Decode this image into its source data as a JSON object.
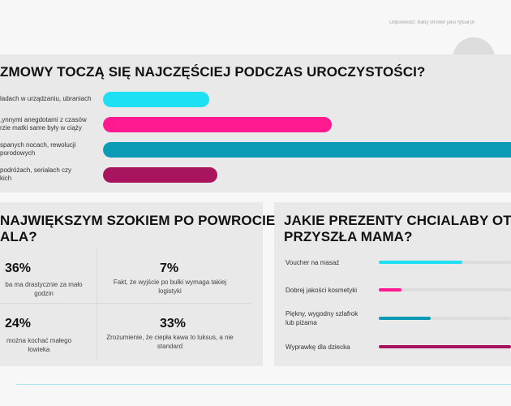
{
  "header": {
    "caption": "Odpowiedzi: Baby shower jako rytuał pr"
  },
  "colors": {
    "cyan": "#1de0f2",
    "pink": "#ff1a8f",
    "teal": "#0b9bb4",
    "magenta": "#a8145e",
    "track": "#dcdcdc"
  },
  "chart_data": [
    {
      "type": "bar",
      "orientation": "horizontal",
      "title": "ZMOWY TOCZĄ SIĘ NAJCZĘŚCIEJ PODCZAS UROCZYSTOŚCI?",
      "categories": [
        [
          "ladach w urządzaniu, ubraniach"
        ],
        [
          "ynnymi anegdotami z czasów,",
          "rzie matki same były w ciąży"
        ],
        [
          "spanych nocach, rewolucji",
          "porodowych"
        ],
        [
          "podróżach, serialach czy",
          "kich"
        ]
      ],
      "values": [
        26,
        56,
        100,
        28
      ],
      "xlim": [
        0,
        100
      ],
      "colors": [
        "#1de0f2",
        "#ff1a8f",
        "#0b9bb4",
        "#a8145e"
      ]
    },
    {
      "type": "table",
      "title": "NAJWIĘKSZYM SZOKIEM PO POWROCIE ALA?",
      "title_lines": [
        "NAJWIĘKSZYM SZOKIEM PO POWROCIE",
        "ALA?"
      ],
      "cells": [
        {
          "value": "36%",
          "label": [
            "ba ma drastycznie za mało",
            "godzin"
          ]
        },
        {
          "value": "7%",
          "label": [
            "Fakt, że wyjście po bułki wymaga takiej",
            "logistyki"
          ]
        },
        {
          "value": "24%",
          "label": [
            "można kochać małego",
            "łowieka"
          ]
        },
        {
          "value": "33%",
          "label": [
            "Zrozumienie, że ciepła kawa to luksus, a nie",
            "standard"
          ]
        }
      ]
    },
    {
      "type": "bar",
      "orientation": "horizontal",
      "title": "JAKIE PREZENTY CHCIAŁABY OTRZ PRZYSZŁA MAMA?",
      "title_lines": [
        "JAKIE PREZENTY CHCIALABY OTRZ",
        "PRZYSZŁA MAMA?"
      ],
      "categories": [
        [
          "Voucher na masaż"
        ],
        [
          "Dobrej jakości kosmetyki"
        ],
        [
          "Piękny, wygodny szlafrok",
          "lub piżama"
        ],
        [
          "Wyprawkę dla dziecka"
        ]
      ],
      "values": [
        63,
        17,
        39,
        100
      ],
      "xlim": [
        0,
        100
      ],
      "colors": [
        "#1de0f2",
        "#ff1a8f",
        "#0b9bb4",
        "#a8145e"
      ]
    }
  ]
}
